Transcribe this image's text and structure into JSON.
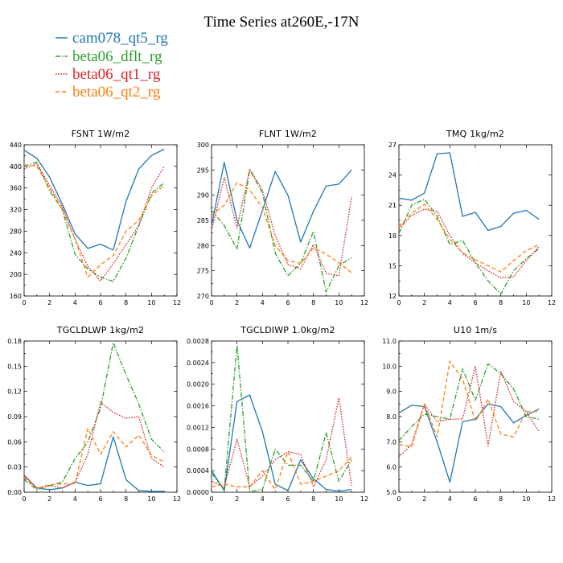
{
  "title": "Time Series at260E,-17N",
  "colors": {
    "cam078_qt5_rg": "#1f77b4",
    "beta06_dflt_rg": "#2ca02c",
    "beta06_qt1_rg": "#d62728",
    "beta06_qt2_rg": "#ff7f0e"
  },
  "legend": [
    {
      "name": "cam078_qt5_rg",
      "color": "#1f77b4",
      "dash": "solid"
    },
    {
      "name": "beta06_dflt_rg",
      "color": "#2ca02c",
      "dash": "dashdot"
    },
    {
      "name": "beta06_qt1_rg",
      "color": "#d62728",
      "dash": "dotted"
    },
    {
      "name": "beta06_qt2_rg",
      "color": "#ff7f0e",
      "dash": "dashed"
    }
  ],
  "chart_data": [
    {
      "type": "line",
      "title": "FSNT   1W/m2",
      "x": [
        0,
        1,
        2,
        3,
        4,
        5,
        6,
        7,
        8,
        9,
        10,
        11
      ],
      "xlim": [
        0,
        12
      ],
      "xticks": [
        0,
        2,
        4,
        6,
        8,
        10,
        12
      ],
      "xtick_labels": [
        "0",
        "2",
        "4",
        "6",
        "8",
        "10",
        "12"
      ],
      "ylim": [
        160,
        440
      ],
      "yticks": [
        160,
        200,
        240,
        280,
        320,
        360,
        400,
        440
      ],
      "ytick_labels": [
        "160",
        "200",
        "240",
        "280",
        "320",
        "360",
        "400",
        "440"
      ],
      "series": [
        {
          "name": "cam078_qt5_rg",
          "values": [
            430,
            415,
            380,
            330,
            275,
            248,
            256,
            245,
            335,
            395,
            420,
            432
          ]
        },
        {
          "name": "beta06_dflt_rg",
          "values": [
            400,
            408,
            355,
            320,
            237,
            210,
            195,
            187,
            230,
            290,
            350,
            370
          ]
        },
        {
          "name": "beta06_qt1_rg",
          "values": [
            395,
            405,
            365,
            325,
            265,
            215,
            188,
            220,
            255,
            290,
            360,
            400
          ]
        },
        {
          "name": "beta06_qt2_rg",
          "values": [
            403,
            400,
            360,
            320,
            265,
            195,
            218,
            235,
            280,
            300,
            345,
            365
          ]
        }
      ]
    },
    {
      "type": "line",
      "title": "FLNT   1W/m2",
      "x": [
        0,
        1,
        2,
        3,
        4,
        5,
        6,
        7,
        8,
        9,
        10,
        11
      ],
      "xlim": [
        0,
        12
      ],
      "xticks": [
        0,
        2,
        4,
        6,
        8,
        10,
        12
      ],
      "xtick_labels": [
        "0",
        "2",
        "4",
        "6",
        "8",
        "10",
        "12"
      ],
      "ylim": [
        270,
        300
      ],
      "yticks": [
        270,
        275,
        280,
        285,
        290,
        295,
        300
      ],
      "ytick_labels": [
        "270",
        "275",
        "280",
        "285",
        "290",
        "295",
        "300"
      ],
      "series": [
        {
          "name": "cam078_qt5_rg",
          "values": [
            284,
            296.5,
            285,
            279.5,
            287,
            294.7,
            290,
            280.7,
            286.8,
            291.8,
            292.2,
            295.0
          ]
        },
        {
          "name": "beta06_dflt_rg",
          "values": [
            287,
            284,
            279.3,
            295,
            290.5,
            278.5,
            274,
            276.5,
            282.8,
            270.8,
            276,
            277.6
          ]
        },
        {
          "name": "beta06_qt1_rg",
          "values": [
            283,
            293.5,
            283.5,
            295.2,
            291,
            282,
            276.2,
            275.4,
            280.2,
            274.5,
            274.0,
            289.7
          ]
        },
        {
          "name": "beta06_qt2_rg",
          "values": [
            286,
            288,
            292.5,
            291,
            287.5,
            280,
            277,
            276.5,
            279.5,
            278.3,
            276.6,
            274.6
          ]
        }
      ]
    },
    {
      "type": "line",
      "title": "TMQ   1kg/m2",
      "x": [
        0,
        1,
        2,
        3,
        4,
        5,
        6,
        7,
        8,
        9,
        10,
        11
      ],
      "xlim": [
        0,
        12
      ],
      "xticks": [
        0,
        2,
        4,
        6,
        8,
        10,
        12
      ],
      "xtick_labels": [
        "0",
        "2",
        "4",
        "6",
        "8",
        "10",
        "12"
      ],
      "ylim": [
        12,
        27
      ],
      "yticks": [
        12,
        15,
        18,
        21,
        24,
        27
      ],
      "ytick_labels": [
        "12",
        "15",
        "18",
        "21",
        "24",
        "27"
      ],
      "series": [
        {
          "name": "cam078_qt5_rg",
          "values": [
            21.7,
            21.5,
            22.2,
            26.1,
            26.2,
            19.9,
            20.3,
            18.5,
            18.9,
            20.2,
            20.5,
            19.6
          ]
        },
        {
          "name": "beta06_dflt_rg",
          "values": [
            18.2,
            21.0,
            21.6,
            19.9,
            17.1,
            17.5,
            15.3,
            13.5,
            12.2,
            14.5,
            15.7,
            16.7
          ]
        },
        {
          "name": "beta06_qt1_rg",
          "values": [
            18.7,
            20.0,
            20.6,
            20.4,
            18.0,
            16.2,
            15.3,
            14.5,
            13.8,
            13.9,
            15.5,
            16.9
          ]
        },
        {
          "name": "beta06_qt2_rg",
          "values": [
            18.9,
            20.2,
            21.1,
            19.6,
            17.6,
            16.3,
            15.6,
            15.0,
            14.4,
            15.5,
            16.5,
            17.1
          ]
        }
      ]
    },
    {
      "type": "line",
      "title": "TGCLDLWP   1kg/m2",
      "x": [
        0,
        1,
        2,
        3,
        4,
        5,
        6,
        7,
        8,
        9,
        10,
        11
      ],
      "xlim": [
        0,
        12
      ],
      "xticks": [
        0,
        2,
        4,
        6,
        8,
        10,
        12
      ],
      "xtick_labels": [
        "0",
        "2",
        "4",
        "6",
        "8",
        "10",
        "12"
      ],
      "ylim": [
        0,
        0.18
      ],
      "yticks": [
        0,
        0.03,
        0.06,
        0.09,
        0.12,
        0.15,
        0.18
      ],
      "ytick_labels": [
        "0.00",
        "0.03",
        "0.06",
        "0.09",
        "0.12",
        "0.15",
        "0.18"
      ],
      "series": [
        {
          "name": "cam078_qt5_rg",
          "values": [
            0.02,
            0.005,
            0.003,
            0.005,
            0.012,
            0.008,
            0.01,
            0.066,
            0.015,
            0.002,
            0.001,
            0.001
          ]
        },
        {
          "name": "beta06_dflt_rg",
          "values": [
            0.015,
            0.003,
            0.008,
            0.012,
            0.04,
            0.06,
            0.1,
            0.178,
            0.14,
            0.105,
            0.063,
            0.048
          ]
        },
        {
          "name": "beta06_qt1_rg",
          "values": [
            0.02,
            0.005,
            0.008,
            0.005,
            0.012,
            0.045,
            0.107,
            0.095,
            0.088,
            0.09,
            0.04,
            0.03
          ]
        },
        {
          "name": "beta06_qt2_rg",
          "values": [
            0.018,
            0.004,
            0.009,
            0.01,
            0.01,
            0.076,
            0.045,
            0.072,
            0.054,
            0.068,
            0.044,
            0.036
          ]
        }
      ]
    },
    {
      "type": "line",
      "title": "TGCLDIWP   1.0kg/m2",
      "x": [
        0,
        1,
        2,
        3,
        4,
        5,
        6,
        7,
        8,
        9,
        10,
        11
      ],
      "xlim": [
        0,
        12
      ],
      "xticks": [
        0,
        2,
        4,
        6,
        8,
        10,
        12
      ],
      "xtick_labels": [
        "0",
        "2",
        "4",
        "6",
        "8",
        "10",
        "12"
      ],
      "ylim": [
        0,
        0.0028
      ],
      "yticks": [
        0,
        0.0004,
        0.0008,
        0.0012,
        0.0016,
        0.002,
        0.0024,
        0.0028
      ],
      "ytick_labels": [
        "0.0000",
        "0.0004",
        "0.0008",
        "0.0012",
        "0.0016",
        "0.0020",
        "0.0024",
        "0.0028"
      ],
      "series": [
        {
          "name": "cam078_qt5_rg",
          "values": [
            0.0004,
            3e-05,
            0.00168,
            0.0018,
            0.00112,
            0.00015,
            3e-05,
            0.0006,
            0.00025,
            5e-05,
            2e-05,
            5e-05
          ]
        },
        {
          "name": "beta06_dflt_rg",
          "values": [
            0.00035,
            5e-05,
            0.00272,
            1e-05,
            5e-05,
            0.0008,
            0.0005,
            0.0005,
            0.0002,
            0.0011,
            0.0002,
            0.0006
          ]
        },
        {
          "name": "beta06_qt1_rg",
          "values": [
            0.0002,
            0.0001,
            0.00098,
            0.0001,
            0.0003,
            0.0006,
            0.00075,
            0.0007,
            0.0001,
            0.0006,
            0.00175,
            0.00012
          ]
        },
        {
          "name": "beta06_qt2_rg",
          "values": [
            0.0001,
            0.00015,
            0.0001,
            0.0001,
            0.0004,
            5e-05,
            0.00075,
            0.00015,
            0.0002,
            0.0003,
            0.0004,
            0.00065
          ]
        }
      ]
    },
    {
      "type": "line",
      "title": "U10   1m/s",
      "x": [
        0,
        1,
        2,
        3,
        4,
        5,
        6,
        7,
        8,
        9,
        10,
        11
      ],
      "xlim": [
        0,
        12
      ],
      "xticks": [
        0,
        2,
        4,
        6,
        8,
        10,
        12
      ],
      "xtick_labels": [
        "0",
        "2",
        "4",
        "6",
        "8",
        "10",
        "12"
      ],
      "ylim": [
        5.0,
        11.0
      ],
      "yticks": [
        5,
        6,
        7,
        8,
        9,
        10,
        11
      ],
      "ytick_labels": [
        "5.0",
        "6.0",
        "7.0",
        "8.0",
        "9.0",
        "10.0",
        "11.0"
      ],
      "series": [
        {
          "name": "cam078_qt5_rg",
          "values": [
            8.15,
            8.45,
            8.4,
            7.0,
            5.4,
            7.8,
            7.9,
            8.5,
            8.4,
            7.75,
            8.05,
            8.3
          ]
        },
        {
          "name": "beta06_dflt_rg",
          "values": [
            7.05,
            7.6,
            8.1,
            8.0,
            7.9,
            9.9,
            8.65,
            10.1,
            9.7,
            9.1,
            8.0,
            7.9
          ]
        },
        {
          "name": "beta06_qt1_rg",
          "values": [
            6.4,
            6.9,
            8.5,
            7.8,
            7.9,
            7.9,
            10.0,
            6.85,
            9.8,
            8.6,
            8.2,
            7.4
          ]
        },
        {
          "name": "beta06_qt2_rg",
          "values": [
            6.9,
            6.8,
            8.5,
            7.2,
            10.2,
            9.5,
            7.8,
            8.7,
            7.3,
            7.2,
            8.2,
            8.2
          ]
        }
      ]
    }
  ]
}
